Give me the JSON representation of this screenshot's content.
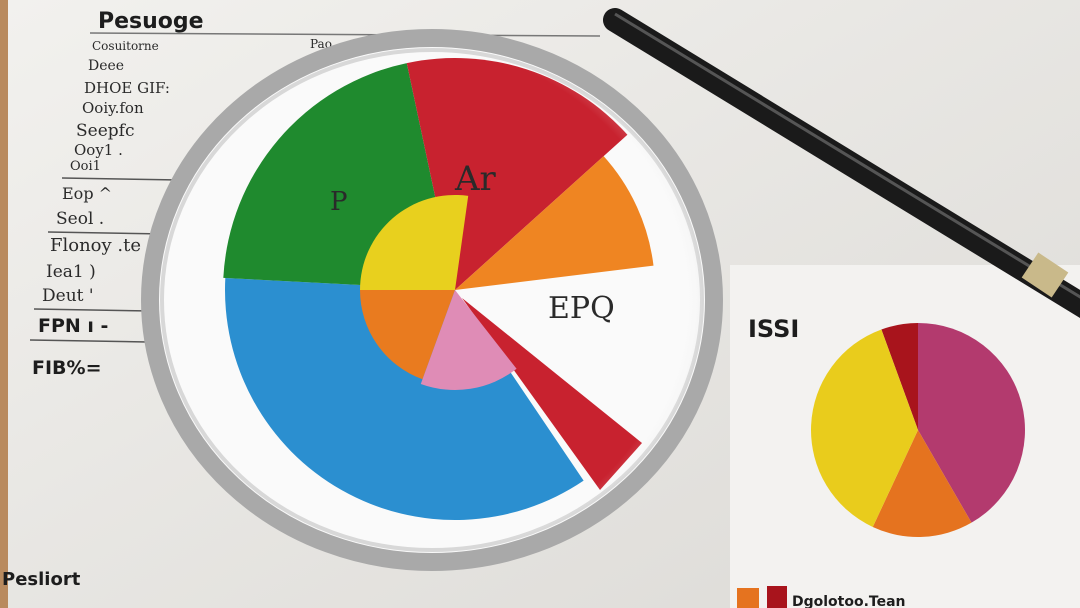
{
  "left_sheet": {
    "heading": "Pesuoge",
    "rows": [
      "Cosuitorne",
      "Deee",
      "DHOE GIF:",
      "Ooiy.fon",
      "Seepfc",
      "Ooy1 .",
      "Ooi1",
      "Eop ^",
      "Seol .",
      "Flonoy .te",
      "Iea1 )",
      "Deut '",
      "FPN ı -",
      "FIB%="
    ],
    "footer": "Pesliort",
    "top_right_label": "Pao"
  },
  "magnified_pie": {
    "labels": {
      "green": "P",
      "red": "Ar",
      "white": "EPQ"
    },
    "colors": {
      "green": "#1f8a2e",
      "red": "#c8222f",
      "orange": "#ef8522",
      "blue": "#2b8fd0",
      "yellow": "#e8d01e",
      "inner_orange": "#e97b1f",
      "pink": "#df8cb6"
    }
  },
  "right_card": {
    "label": "ISSI",
    "legend_text": "Dgolotoo.Tean",
    "colors": {
      "dark_red": "#a8141c",
      "magenta": "#b33a6e",
      "orange": "#e5731f",
      "yellow": "#e9cc1c"
    }
  }
}
